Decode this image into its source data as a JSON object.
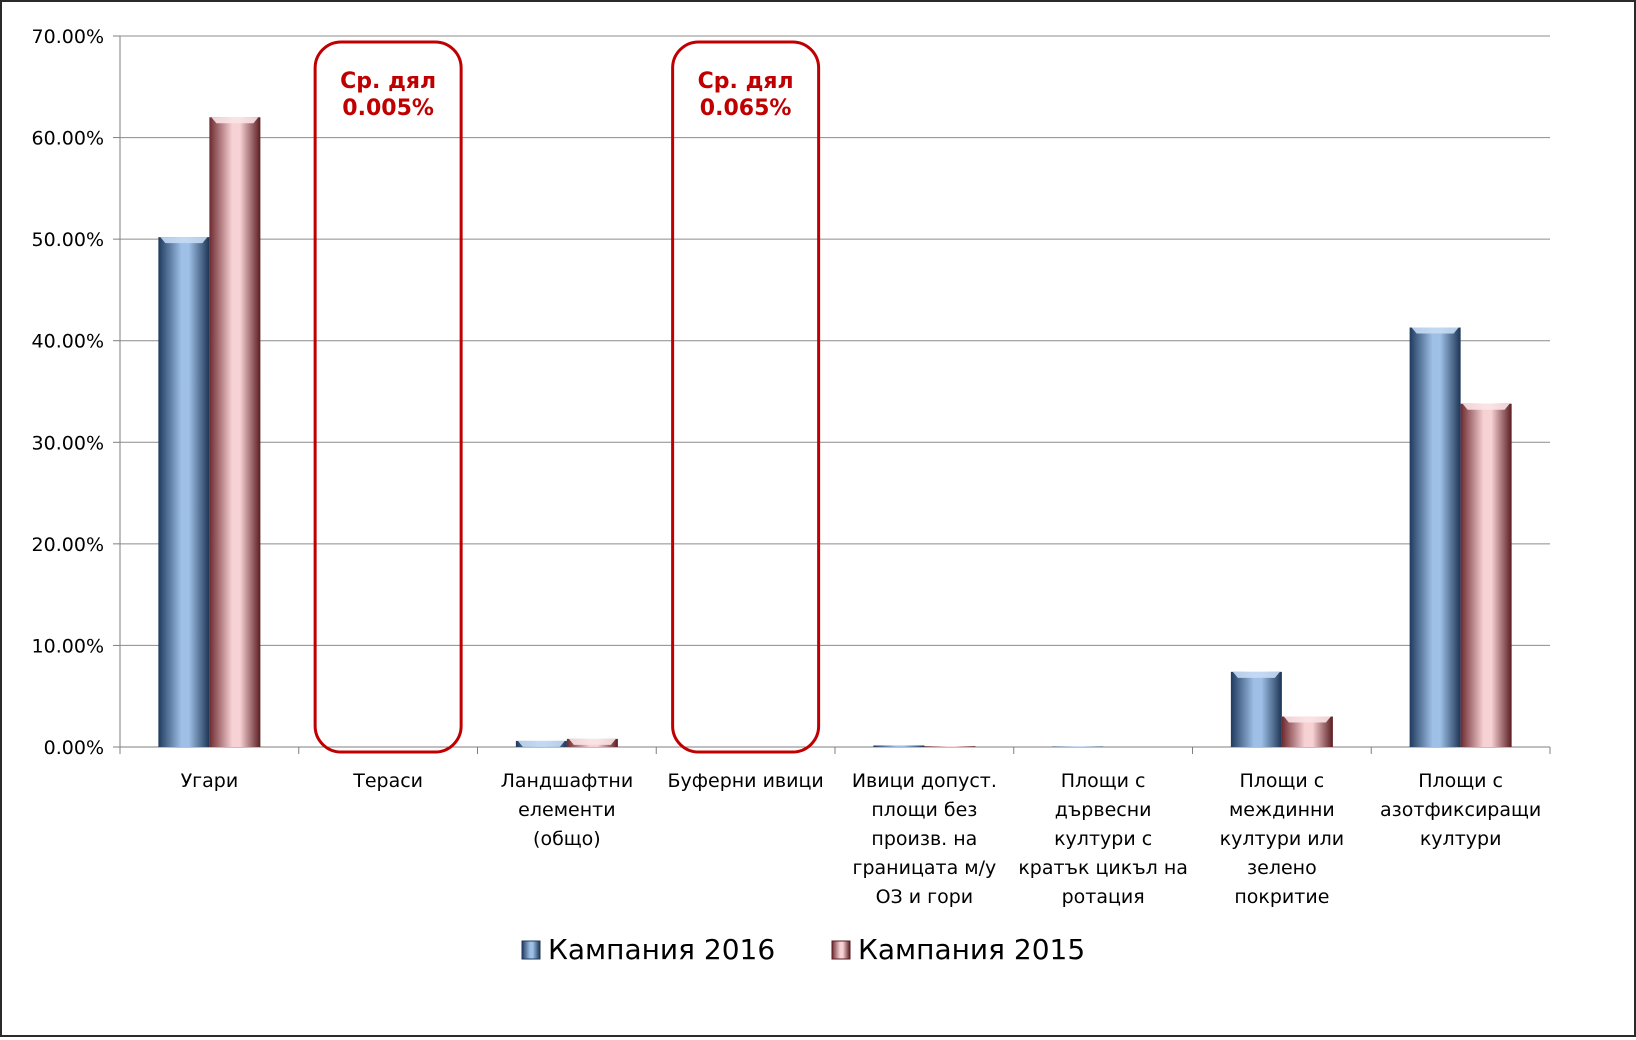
{
  "chart_data": {
    "type": "bar",
    "title": "",
    "xlabel": "",
    "ylabel": "",
    "ylim": [
      0,
      0.7
    ],
    "y_ticks": [
      0,
      0.1,
      0.2,
      0.3,
      0.4,
      0.5,
      0.6,
      0.7
    ],
    "y_tick_labels": [
      "0.00%",
      "10.00%",
      "20.00%",
      "30.00%",
      "40.00%",
      "50.00%",
      "60.00%",
      "70.00%"
    ],
    "grid": true,
    "legend_position": "bottom",
    "categories": [
      [
        "Угари"
      ],
      [
        "Тераси"
      ],
      [
        "Ландшафтни",
        "елементи",
        "(общо)"
      ],
      [
        "Буферни ивици"
      ],
      [
        "Ивици допуст.",
        "площи без",
        "произв. на",
        "границата м/у",
        "ОЗ и гори"
      ],
      [
        "Площи с",
        "дървесни",
        "култури с",
        "кратък цикъл на",
        "ротация"
      ],
      [
        "Площи с",
        "междинни",
        "култури или",
        "зелено",
        "покритие"
      ],
      [
        "Площи с",
        "азотфиксиращи",
        "култури"
      ]
    ],
    "series": [
      {
        "name": "Кампания 2016",
        "color": "#5b86b8",
        "values": [
          0.502,
          0.0,
          0.006,
          0.0,
          0.0015,
          0.0005,
          0.074,
          0.413
        ]
      },
      {
        "name": "Кампания 2015",
        "color": "#e8a3a8",
        "values": [
          0.62,
          0.0,
          0.008,
          0.0,
          0.0008,
          0.0003,
          0.03,
          0.338
        ]
      }
    ],
    "annotations": [
      {
        "category_index": 1,
        "lines": [
          "Ср. дял",
          "0.005%"
        ],
        "color": "#c00000"
      },
      {
        "category_index": 3,
        "lines": [
          "Ср. дял",
          "0.065%"
        ],
        "color": "#c00000"
      }
    ]
  }
}
